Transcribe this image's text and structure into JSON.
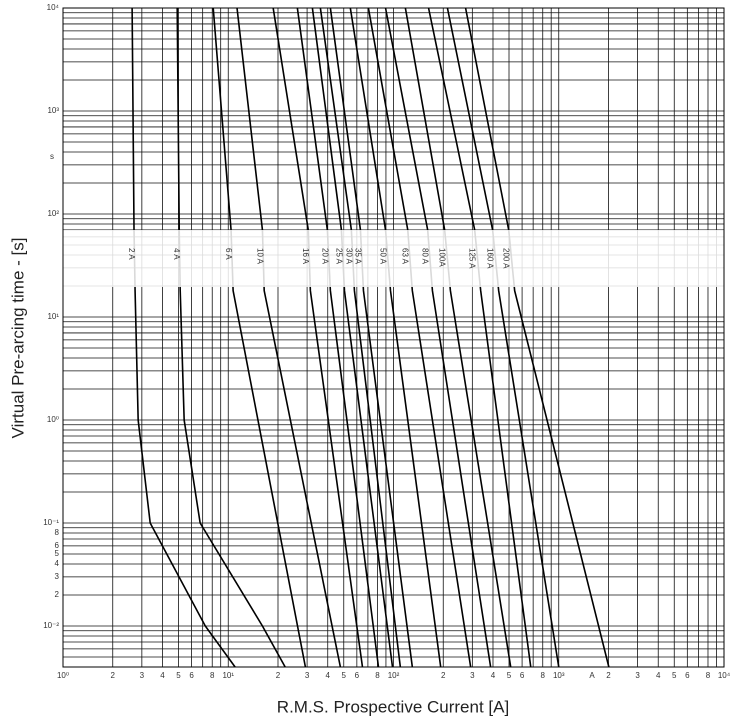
{
  "chart_data": {
    "type": "line",
    "x_label": "R.M.S. Prospective Current [A]",
    "y_label": "Virtual Pre-arcing time - [s]",
    "x_unit": "A",
    "y_unit": "s",
    "log_x": true,
    "log_y": true,
    "grid": true,
    "minor_grid": true,
    "xlim": [
      1,
      10000
    ],
    "ylim": [
      0.004,
      10000
    ],
    "xticks": [
      {
        "value": 1,
        "label": "10⁰"
      },
      2,
      3,
      4,
      5,
      6,
      8,
      {
        "value": 10,
        "label": "10¹"
      },
      {
        "value": 20,
        "label": "2"
      },
      {
        "value": 30,
        "label": "3"
      },
      {
        "value": 40,
        "label": "4"
      },
      {
        "value": 50,
        "label": "5"
      },
      {
        "value": 60,
        "label": "6"
      },
      {
        "value": 80,
        "label": "8"
      },
      {
        "value": 100,
        "label": "10²"
      },
      {
        "value": 200,
        "label": "2"
      },
      {
        "value": 300,
        "label": "3"
      },
      {
        "value": 400,
        "label": "4"
      },
      {
        "value": 500,
        "label": "5"
      },
      {
        "value": 600,
        "label": "6"
      },
      {
        "value": 800,
        "label": "8"
      },
      {
        "value": 1000,
        "label": "10³"
      },
      {
        "value": 2000,
        "label": "2"
      },
      {
        "value": 3000,
        "label": "3"
      },
      {
        "value": 4000,
        "label": "4"
      },
      {
        "value": 5000,
        "label": "5"
      },
      {
        "value": 6000,
        "label": "6"
      },
      {
        "value": 8000,
        "label": "8"
      },
      {
        "value": 10000,
        "label": "10⁴"
      }
    ],
    "yticks": [
      {
        "value": 10000,
        "label": "10⁴"
      },
      {
        "value": 1000,
        "label": "10³"
      },
      {
        "value": 100,
        "label": "10²"
      },
      {
        "value": 10,
        "label": "10¹"
      },
      {
        "value": 1,
        "label": "10⁰"
      },
      {
        "value": 0.1,
        "label": "10⁻¹"
      },
      {
        "value": 0.08,
        "label": "8"
      },
      {
        "value": 0.06,
        "label": "6"
      },
      {
        "value": 0.05,
        "label": "5"
      },
      {
        "value": 0.04,
        "label": "4"
      },
      {
        "value": 0.03,
        "label": "3"
      },
      {
        "value": 0.02,
        "label": "2"
      },
      {
        "value": 0.01,
        "label": "10⁻²"
      }
    ],
    "series": [
      {
        "name": "2 A",
        "color": "#000000",
        "x": [
          2.62,
          2.69,
          2.73,
          2.85,
          3.37,
          7.26,
          11.0
        ],
        "values": [
          10000,
          70,
          18,
          1,
          0.1,
          0.01,
          0.004
        ]
      },
      {
        "name": "4 A",
        "color": "#000000",
        "x": [
          4.91,
          5.05,
          5.12,
          5.41,
          6.76,
          16.1,
          22.1
        ],
        "values": [
          10000,
          70,
          18,
          1,
          0.1,
          0.01,
          0.004
        ]
      },
      {
        "name": "6 A",
        "color": "#000000",
        "x": [
          8.11,
          10.4,
          10.7,
          29.3
        ],
        "values": [
          10000,
          70,
          18,
          0.004
        ]
      },
      {
        "name": "10 A",
        "color": "#000000",
        "x": [
          11.3,
          16.1,
          16.5,
          47.7
        ],
        "values": [
          10000,
          70,
          18,
          0.004
        ]
      },
      {
        "name": "16 A",
        "color": "#000000",
        "x": [
          18.7,
          30.5,
          31.4,
          64.9
        ],
        "values": [
          10000,
          70,
          18,
          0.004
        ]
      },
      {
        "name": "20 A",
        "color": "#000000",
        "x": [
          26.2,
          39.8,
          41.5,
          81.1
        ],
        "values": [
          10000,
          70,
          18,
          0.004
        ]
      },
      {
        "name": "25 A",
        "color": "#000000",
        "x": [
          32.3,
          48.4,
          50.5,
          98.6
        ],
        "values": [
          10000,
          70,
          18,
          0.004
        ]
      },
      {
        "name": "30 A",
        "color": "#000000",
        "x": [
          36.1,
          55.6,
          58.0,
          110
        ],
        "values": [
          10000,
          70,
          18,
          0.004
        ]
      },
      {
        "name": "35 A",
        "color": "#000000",
        "x": [
          41.5,
          63.1,
          65.8,
          130
        ],
        "values": [
          10000,
          70,
          18,
          0.004
        ]
      },
      {
        "name": "50 A",
        "color": "#000000",
        "x": [
          54.8,
          89.5,
          95.9,
          193
        ],
        "values": [
          10000,
          70,
          18,
          0.004
        ]
      },
      {
        "name": "63 A",
        "color": "#000000",
        "x": [
          70.5,
          122,
          130,
          293
        ],
        "values": [
          10000,
          70,
          18,
          0.004
        ]
      },
      {
        "name": "80 A",
        "color": "#000000",
        "x": [
          89.5,
          161,
          172,
          387
        ],
        "values": [
          10000,
          70,
          18,
          0.004
        ]
      },
      {
        "name": "100A",
        "color": "#000000",
        "x": [
          118,
          204,
          221,
          512
        ],
        "values": [
          10000,
          70,
          18,
          0.004
        ]
      },
      {
        "name": "125 A",
        "color": "#000000",
        "x": [
          163,
          310,
          337,
          677
        ],
        "values": [
          10000,
          70,
          18,
          0.004
        ]
      },
      {
        "name": "160 A",
        "color": "#000000",
        "x": [
          212,
          398,
          433,
          1000
        ],
        "values": [
          10000,
          70,
          18,
          0.004
        ]
      },
      {
        "name": "200 A",
        "color": "#000000",
        "x": [
          273,
          498,
          541,
          2010
        ],
        "values": [
          10000,
          70,
          18,
          0.004
        ]
      }
    ]
  }
}
